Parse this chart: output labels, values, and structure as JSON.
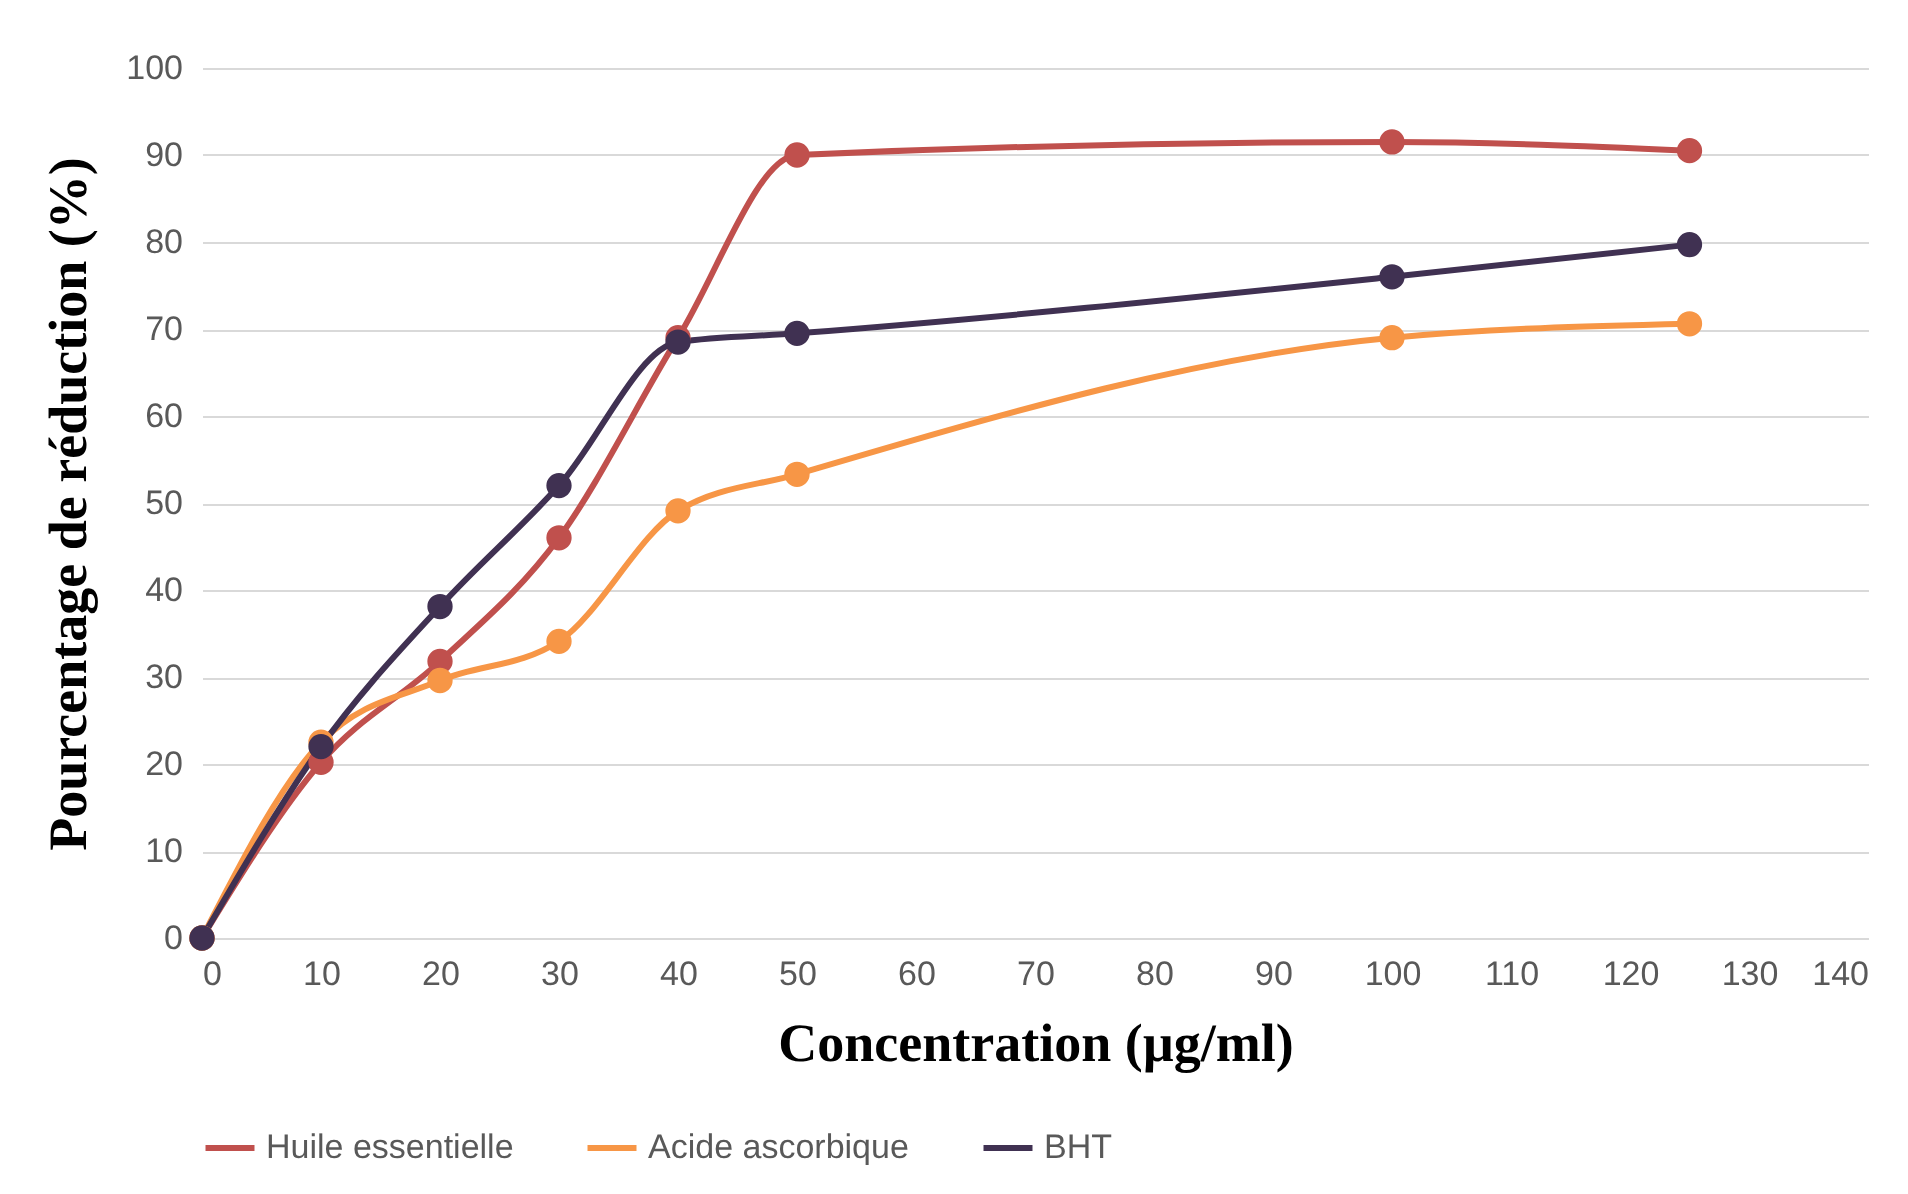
{
  "chart_data": {
    "type": "line",
    "xlabel": "Concentration (µg/ml)",
    "ylabel": "Pourcentage de réduction (%)",
    "x": [
      0,
      10,
      20,
      30,
      40,
      50,
      100,
      125
    ],
    "series": [
      {
        "name": "Huile essentielle",
        "color": "#c0504d",
        "values": [
          0,
          20.2,
          31.8,
          46,
          69,
          90,
          91.5,
          90.5
        ]
      },
      {
        "name": "Acide ascorbique",
        "color": "#f79646",
        "values": [
          0,
          22.5,
          29.6,
          34.1,
          49.1,
          53.3,
          69,
          70.6
        ]
      },
      {
        "name": "BHT",
        "color": "#403152",
        "values": [
          0,
          22,
          38.1,
          52,
          68.5,
          69.5,
          76,
          79.7
        ]
      }
    ],
    "xlim": [
      0,
      140
    ],
    "xticks": [
      0,
      10,
      20,
      30,
      40,
      50,
      60,
      70,
      80,
      90,
      100,
      110,
      120,
      130,
      140
    ],
    "ylim": [
      0,
      100
    ],
    "yticks": [
      0,
      10,
      20,
      30,
      40,
      50,
      60,
      70,
      80,
      90,
      100
    ],
    "grid": "y",
    "legend": "bottom",
    "marker": "circle",
    "line_style": "solid"
  }
}
